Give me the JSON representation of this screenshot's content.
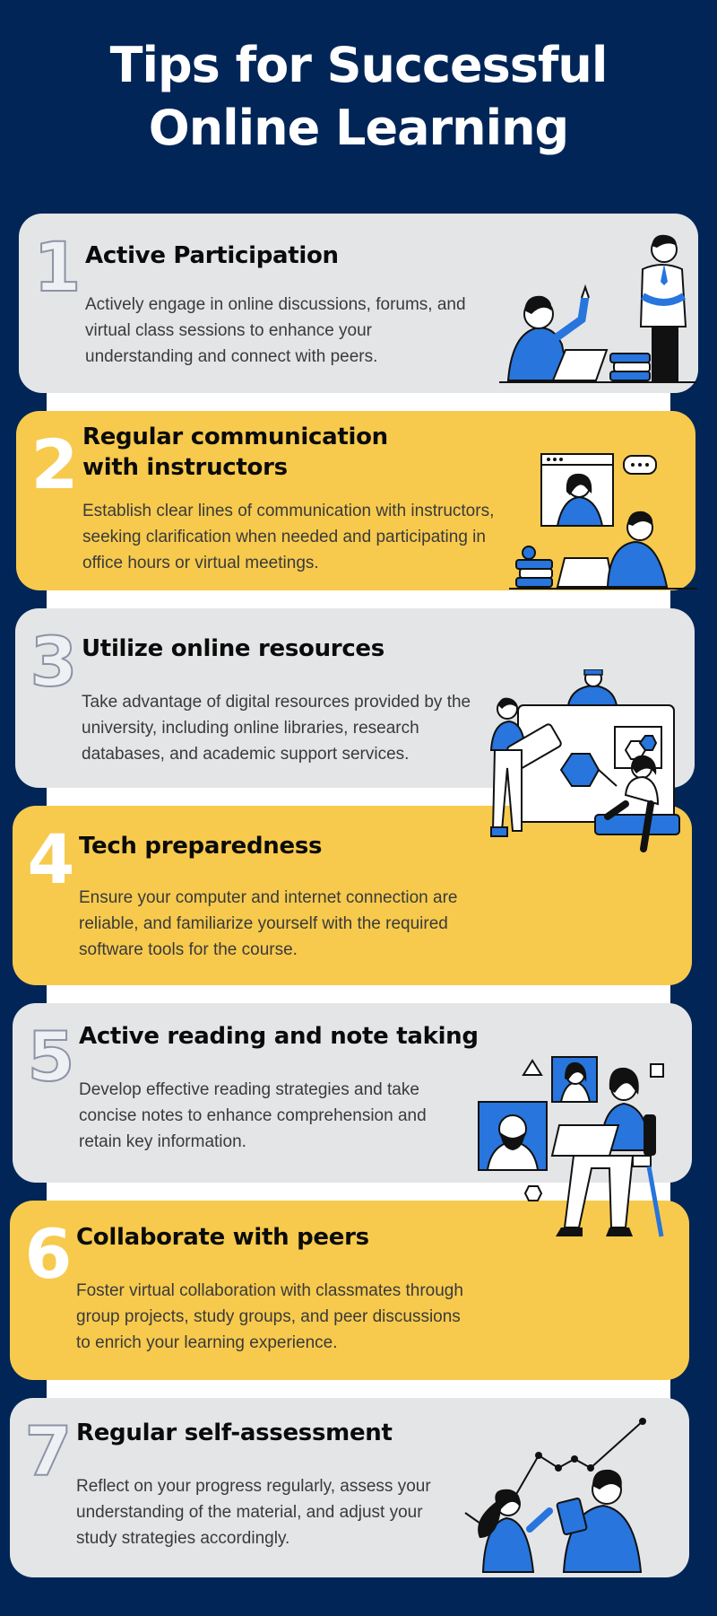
{
  "title": {
    "line1": "Tips for Successful",
    "line2": "Online Learning"
  },
  "colors": {
    "background": "#012557",
    "card_gray": "#e4e5e7",
    "card_yellow": "#f7ca4d",
    "accent_blue": "#2775dd"
  },
  "tips": [
    {
      "number": "1",
      "heading": "Active Participation",
      "description": "Actively engage in online discussions, forums, and virtual class sessions to enhance your understanding and connect with peers.",
      "illustration": "students-discussion-illustration"
    },
    {
      "number": "2",
      "heading_line1": "Regular communication",
      "heading_line2": "with instructors",
      "description": "Establish clear lines of communication with instructors, seeking clarification when needed and participating in office hours or virtual meetings.",
      "illustration": "video-call-illustration"
    },
    {
      "number": "3",
      "heading": "Utilize online resources",
      "description": "Take advantage of digital resources provided by the university, including online libraries, research databases, and academic support services.",
      "illustration": "digital-resources-illustration"
    },
    {
      "number": "4",
      "heading": "Tech preparedness",
      "description": "Ensure your computer and internet connection are reliable, and familiarize yourself with the required software tools for the course.",
      "illustration": "none"
    },
    {
      "number": "5",
      "heading": "Active reading and note taking",
      "description": "Develop effective reading strategies and take concise notes to enhance comprehension and retain key information.",
      "illustration": "laptop-study-illustration"
    },
    {
      "number": "6",
      "heading": "Collaborate with peers",
      "description": "Foster virtual collaboration with classmates through group projects, study groups, and peer discussions to enrich your learning experience.",
      "illustration": "none"
    },
    {
      "number": "7",
      "heading": "Regular self-assessment",
      "description": "Reflect on your progress regularly, assess your understanding of the material, and adjust your study strategies accordingly.",
      "illustration": "progress-chart-illustration"
    }
  ]
}
